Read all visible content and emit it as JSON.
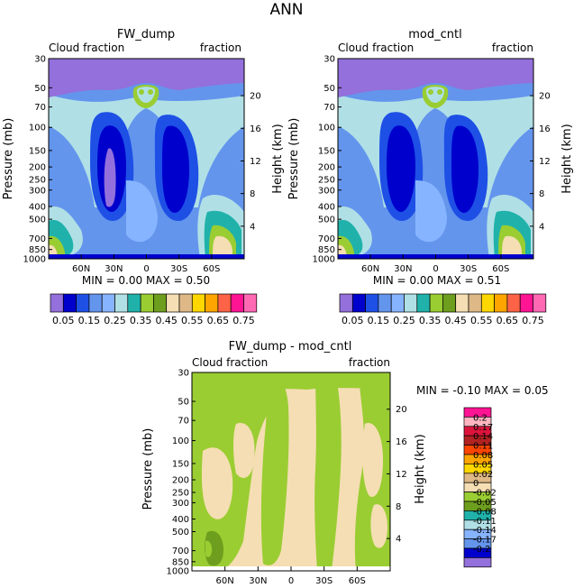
{
  "figure_title": "ANN",
  "panels": [
    {
      "title": "FW_dump",
      "left_label": "Cloud fraction",
      "right_label": "fraction",
      "ylabel": "Pressure (mb)",
      "y2label": "Height (km)",
      "stats": "MIN =    0.00    MAX =    0.50"
    },
    {
      "title": "mod_cntl",
      "left_label": "Cloud fraction",
      "right_label": "fraction",
      "ylabel": "Pressure (mb)",
      "y2label": "Height (km)",
      "stats": "MIN =    0.00    MAX =    0.51"
    },
    {
      "title": "FW_dump - mod_cntl",
      "left_label": "Cloud fraction",
      "right_label": "fraction",
      "ylabel": "Pressure (mb)",
      "y2label": "Height (km)",
      "stats": "MIN =   -0.10    MAX =    0.05"
    }
  ],
  "chart_data": [
    {
      "type": "heatmap",
      "title": "FW_dump",
      "xlabel": "",
      "ylabel": "Pressure (mb)",
      "y2label": "Height (km)",
      "xticks": [
        "60N",
        "30N",
        "0",
        "30S",
        "60S"
      ],
      "xtick_lat": [
        60,
        30,
        0,
        -30,
        -60
      ],
      "xlim": [
        90,
        -90
      ],
      "yticks_mb": [
        30,
        50,
        70,
        100,
        150,
        200,
        250,
        300,
        400,
        500,
        700,
        850,
        1000
      ],
      "ylim_mb": [
        30,
        1000
      ],
      "yticks_km": [
        20,
        16,
        12,
        8,
        4
      ],
      "min": 0.0,
      "max": 0.5,
      "colorbar_levels": [
        0.05,
        0.1,
        0.15,
        0.2,
        0.25,
        0.3,
        0.35,
        0.4,
        0.45,
        0.5,
        0.55,
        0.6,
        0.65,
        0.7,
        0.75
      ],
      "colorbar_labels": [
        "0.05",
        "0.15",
        "0.25",
        "0.35",
        "0.45",
        "0.55",
        "0.65",
        "0.75"
      ]
    },
    {
      "type": "heatmap",
      "title": "mod_cntl",
      "xlabel": "",
      "ylabel": "Pressure (mb)",
      "y2label": "Height (km)",
      "xticks": [
        "60N",
        "30N",
        "0",
        "30S",
        "60S"
      ],
      "xtick_lat": [
        60,
        30,
        0,
        -30,
        -60
      ],
      "xlim": [
        90,
        -90
      ],
      "yticks_mb": [
        30,
        50,
        70,
        100,
        150,
        200,
        250,
        300,
        400,
        500,
        700,
        850,
        1000
      ],
      "ylim_mb": [
        30,
        1000
      ],
      "yticks_km": [
        20,
        16,
        12,
        8,
        4
      ],
      "min": 0.0,
      "max": 0.51,
      "colorbar_levels": [
        0.05,
        0.1,
        0.15,
        0.2,
        0.25,
        0.3,
        0.35,
        0.4,
        0.45,
        0.5,
        0.55,
        0.6,
        0.65,
        0.7,
        0.75
      ],
      "colorbar_labels": [
        "0.05",
        "0.15",
        "0.25",
        "0.35",
        "0.45",
        "0.55",
        "0.65",
        "0.75"
      ]
    },
    {
      "type": "heatmap",
      "title": "FW_dump - mod_cntl",
      "xlabel": "",
      "ylabel": "Pressure (mb)",
      "y2label": "Height (km)",
      "xticks": [
        "60N",
        "30N",
        "0",
        "30S",
        "60S"
      ],
      "xtick_lat": [
        60,
        30,
        0,
        -30,
        -60
      ],
      "xlim": [
        90,
        -90
      ],
      "yticks_mb": [
        30,
        50,
        70,
        100,
        150,
        200,
        250,
        300,
        400,
        500,
        700,
        850,
        1000
      ],
      "ylim_mb": [
        30,
        1000
      ],
      "yticks_km": [
        20,
        16,
        12,
        8,
        4
      ],
      "min": -0.1,
      "max": 0.05,
      "colorbar_levels": [
        0.2,
        0.17,
        0.14,
        0.11,
        0.08,
        0.05,
        0.02,
        0,
        -0.02,
        -0.05,
        -0.08,
        -0.11,
        -0.14,
        -0.17,
        -0.2
      ],
      "colorbar_labels": [
        "0.2",
        "0.17",
        "0.14",
        "0.11",
        "0.08",
        "0.05",
        "0.02",
        "0",
        "-0.02",
        "-0.05",
        "-0.08",
        "-0.11",
        "-0.14",
        "-0.17",
        "-0.2"
      ]
    }
  ],
  "colors": {
    "abs_scale": [
      "#9370db",
      "#0000cd",
      "#1e50e6",
      "#6495ed",
      "#87b4ff",
      "#b0e0e6",
      "#20b2aa",
      "#9acd32",
      "#6e9e1e",
      "#f5deb3",
      "#deb887",
      "#ffd700",
      "#ffa500",
      "#ff6347",
      "#ff1493",
      "#ff69b4"
    ],
    "diff_scale": [
      "#ff1493",
      "#ffb6c1",
      "#dc143c",
      "#b22222",
      "#ff4500",
      "#ffa500",
      "#ffd700",
      "#deb887",
      "#f5deb3",
      "#9acd32",
      "#6e9e1e",
      "#20b2aa",
      "#b0e0e6",
      "#87b4ff",
      "#6495ed",
      "#0000cd",
      "#9370db"
    ]
  }
}
